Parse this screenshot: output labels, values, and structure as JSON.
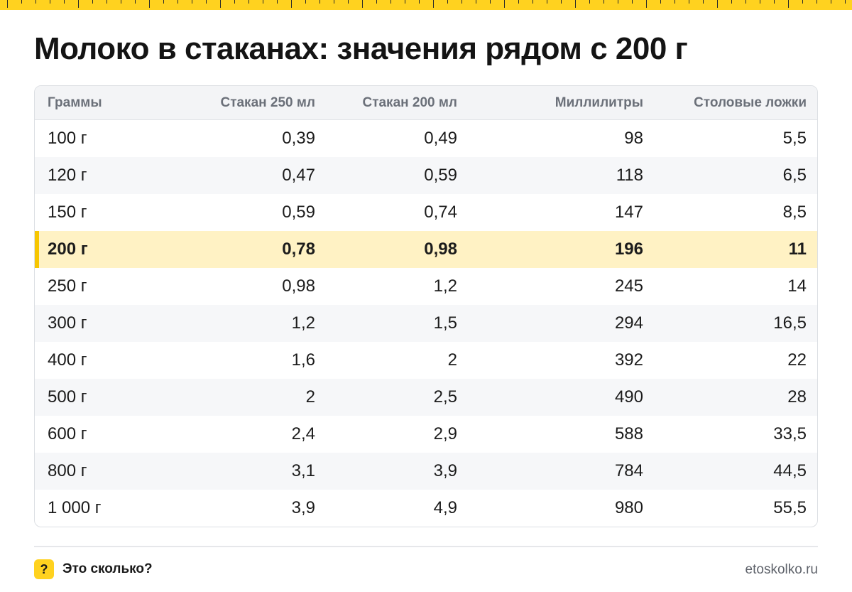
{
  "title": "Молоко в стаканах: значения рядом с 200 г",
  "table": {
    "headers": [
      "Граммы",
      "Стакан 250 мл",
      "Стакан 200 мл",
      "Миллилитры",
      "Столовые ложки"
    ],
    "rows": [
      [
        "100 г",
        "0,39",
        "0,49",
        "98",
        "5,5"
      ],
      [
        "120 г",
        "0,47",
        "0,59",
        "118",
        "6,5"
      ],
      [
        "150 г",
        "0,59",
        "0,74",
        "147",
        "8,5"
      ],
      [
        "200 г",
        "0,78",
        "0,98",
        "196",
        "11"
      ],
      [
        "250 г",
        "0,98",
        "1,2",
        "245",
        "14"
      ],
      [
        "300 г",
        "1,2",
        "1,5",
        "294",
        "16,5"
      ],
      [
        "400 г",
        "1,6",
        "2",
        "392",
        "22"
      ],
      [
        "500 г",
        "2",
        "2,5",
        "490",
        "28"
      ],
      [
        "600 г",
        "2,4",
        "2,9",
        "588",
        "33,5"
      ],
      [
        "800 г",
        "3,1",
        "3,9",
        "784",
        "44,5"
      ],
      [
        "1 000 г",
        "3,9",
        "4,9",
        "980",
        "55,5"
      ]
    ],
    "highlighted_row": "200 г"
  },
  "footer": {
    "badge": "?",
    "brand": "Это сколько?",
    "site": "etoskolko.ru"
  },
  "colors": {
    "accent": "#ffd21f",
    "highlight_row": "#fff2c4"
  },
  "icons": {
    "ruler": "ruler-strip",
    "badge": "question-badge-icon"
  }
}
